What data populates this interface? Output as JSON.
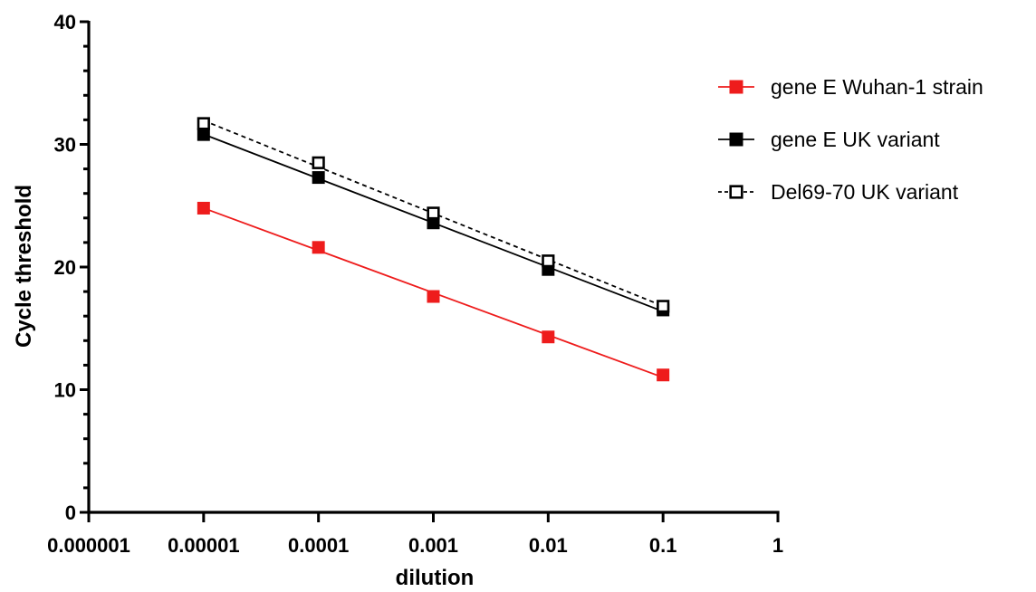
{
  "chart_data": {
    "type": "scatter",
    "xlabel": "dilution",
    "ylabel": "Cycle threshold",
    "x_scale": "log",
    "xlim": [
      1e-06,
      1
    ],
    "ylim": [
      0,
      40
    ],
    "x_ticks": [
      "0.000001",
      "0.00001",
      "0.0001",
      "0.001",
      "0.01",
      "0.1",
      "1"
    ],
    "y_ticks": [
      "0",
      "10",
      "20",
      "30",
      "40"
    ],
    "grid": false,
    "legend_position": "right",
    "series": [
      {
        "name": "gene E Wuhan-1 strain",
        "color": "#ee1c1c",
        "marker": "filled-square",
        "line": "solid",
        "x": [
          1e-05,
          0.0001,
          0.001,
          0.01,
          0.1
        ],
        "y": [
          24.8,
          21.6,
          17.6,
          14.3,
          11.2
        ]
      },
      {
        "name": "gene E UK variant",
        "color": "#000000",
        "marker": "filled-square",
        "line": "solid",
        "x": [
          1e-05,
          0.0001,
          0.001,
          0.01,
          0.1
        ],
        "y": [
          30.8,
          27.3,
          23.6,
          19.8,
          16.5
        ]
      },
      {
        "name": "Del69-70 UK variant",
        "color": "#000000",
        "marker": "open-square",
        "line": "dashed",
        "x": [
          1e-05,
          0.0001,
          0.001,
          0.01,
          0.1
        ],
        "y": [
          31.7,
          28.5,
          24.4,
          20.5,
          16.8
        ]
      }
    ]
  }
}
